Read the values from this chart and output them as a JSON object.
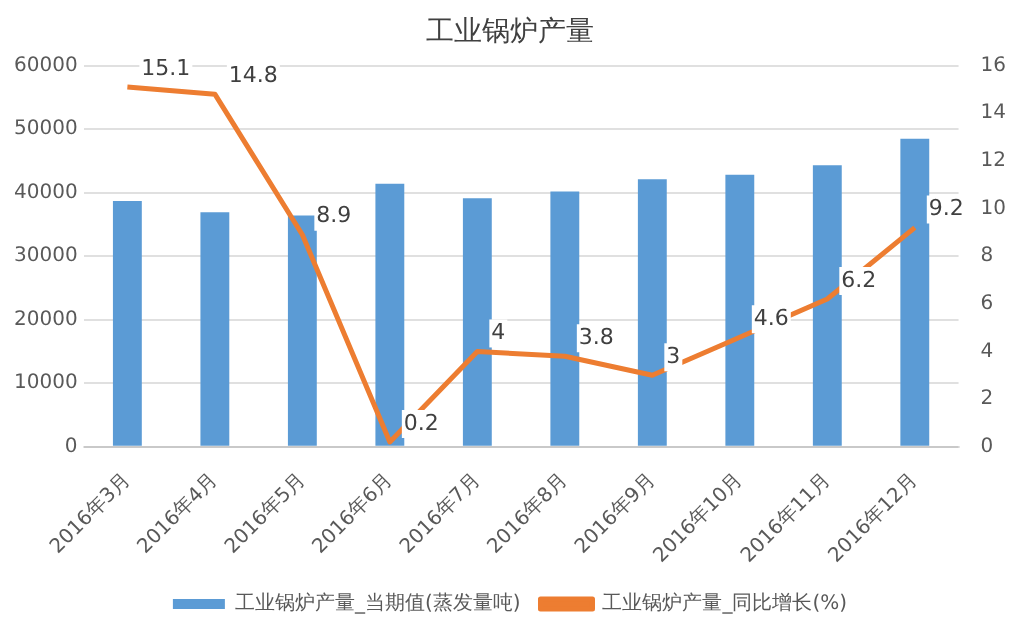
{
  "chart_data": {
    "type": "bar",
    "title": "工业锅炉产量",
    "categories": [
      "2016年3月",
      "2016年4月",
      "2016年5月",
      "2016年6月",
      "2016年7月",
      "2016年8月",
      "2016年9月",
      "2016年10月",
      "2016年11月",
      "2016年12月"
    ],
    "series": [
      {
        "name": "工业锅炉产量_当期值(蒸发量吨)",
        "color": "#5b9bd5",
        "values": [
          38700,
          36900,
          36400,
          41400,
          39100,
          40200,
          42100,
          42800,
          44300,
          48500
        ]
      },
      {
        "name": "工业锅炉产量_同比增长(%)",
        "type": "line",
        "axis": "y2",
        "color": "#ed7d31",
        "values": [
          15.1,
          14.8,
          8.9,
          0.2,
          4,
          3.8,
          3,
          4.6,
          6.2,
          9.2
        ],
        "value_labels": [
          "15.1",
          "14.8",
          "8.9",
          "0.2",
          "4",
          "3.8",
          "3",
          "4.6",
          "6.2",
          "9.2"
        ]
      }
    ],
    "ylim": [
      0,
      60000
    ],
    "yticks": [
      0,
      10000,
      20000,
      30000,
      40000,
      50000,
      60000
    ],
    "y2lim": [
      0,
      16
    ],
    "y2ticks": [
      0,
      2,
      4,
      6,
      8,
      10,
      12,
      14,
      16
    ],
    "grid": "y",
    "legend": "bottom",
    "marker": "none"
  }
}
